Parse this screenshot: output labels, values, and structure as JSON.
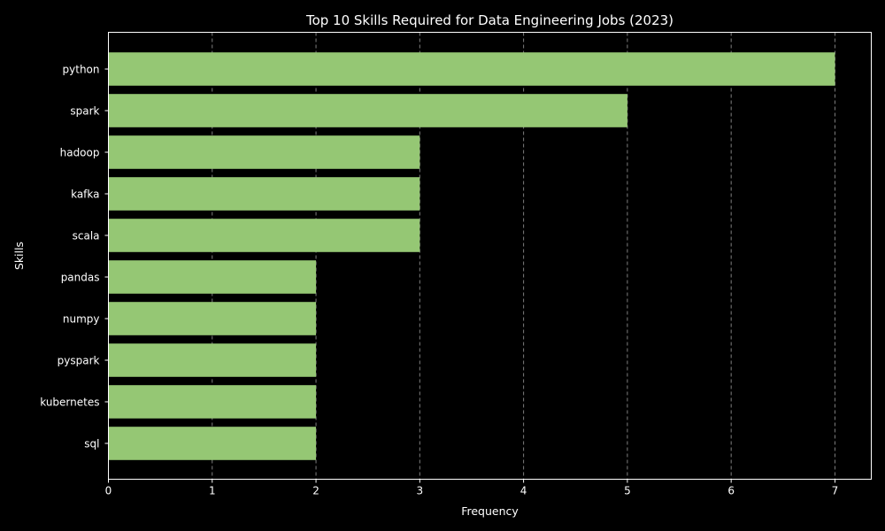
{
  "chart_data": {
    "type": "bar",
    "orientation": "horizontal",
    "title": "Top 10 Skills Required for Data Engineering Jobs (2023)",
    "xlabel": "Frequency",
    "ylabel": "Skills",
    "categories": [
      "python",
      "spark",
      "hadoop",
      "kafka",
      "scala",
      "pandas",
      "numpy",
      "pyspark",
      "kubernetes",
      "sql"
    ],
    "values": [
      7,
      5,
      3,
      3,
      3,
      2,
      2,
      2,
      2,
      2
    ],
    "xlim": [
      0,
      7.35
    ],
    "x_ticks": [
      "0",
      "1",
      "2",
      "3",
      "4",
      "5",
      "6",
      "7"
    ],
    "grid": "x",
    "colors": {
      "background": "#000000",
      "bar": "#95c774",
      "axis": "#ffffff",
      "grid": "#7f7f7f",
      "text": "#ffffff"
    }
  }
}
